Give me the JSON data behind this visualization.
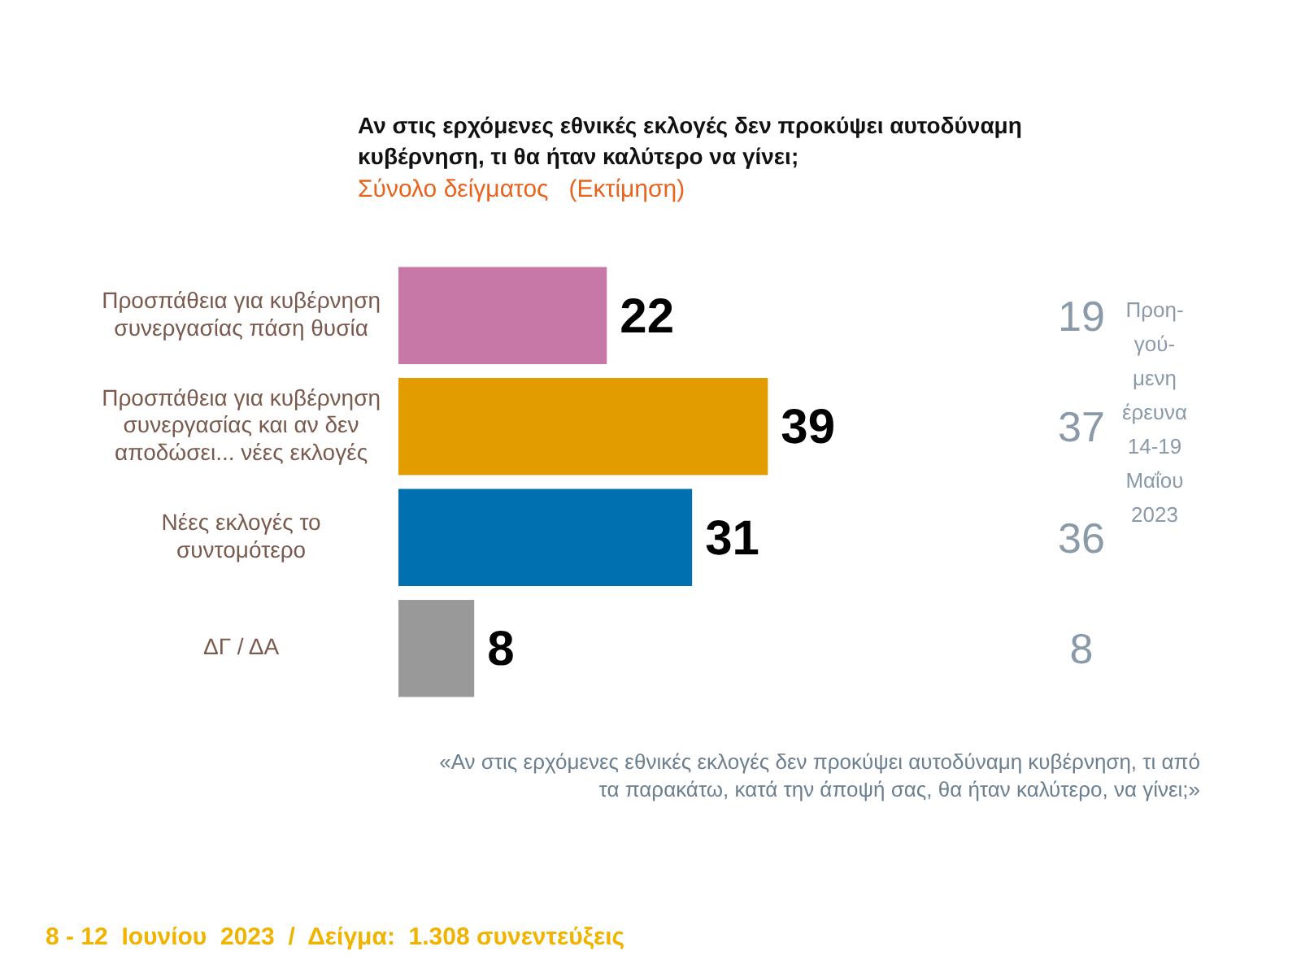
{
  "chart_data": {
    "type": "bar",
    "orientation": "horizontal",
    "title": "Αν στις ερχόμενες εθνικές εκλογές δεν προκύψει αυτοδύναμη κυβέρνηση, τι θα ήταν καλύτερο να γίνει;",
    "subtitle": "Σύνολο δείγματος   (Εκτίμηση)",
    "categories": [
      "Προσπάθεια για κυβέρνηση συνεργασίας πάση θυσία",
      "Προσπάθεια για κυβέρνηση συνεργασίας και αν δεν αποδώσει... νέες εκλογές",
      "Νέες εκλογές το συντομότερο",
      "ΔΓ / ΔΑ"
    ],
    "values": [
      22,
      39,
      31,
      8
    ],
    "colors": [
      "#c878a6",
      "#e39c00",
      "#0070b0",
      "#999999"
    ],
    "data_labels": true,
    "tick_labels": "y",
    "annotations": [
      "Προη-γού-μενη έρευνα 14-19 Μαΐου 2023",
      "«Αν στις ερχόμενες εθνικές εκλογές δεν προκύψει αυτοδύναμη κυβέρνηση, τι από τα παρακάτω, κατά την άποψή σας, θα ήταν καλύτερο, να γίνει;»",
      "8 - 12  Ιουνίου  2023  /  Δείγμα:  1.308 συνεντεύξεις",
      "19",
      "37",
      "36",
      "8"
    ]
  }
}
